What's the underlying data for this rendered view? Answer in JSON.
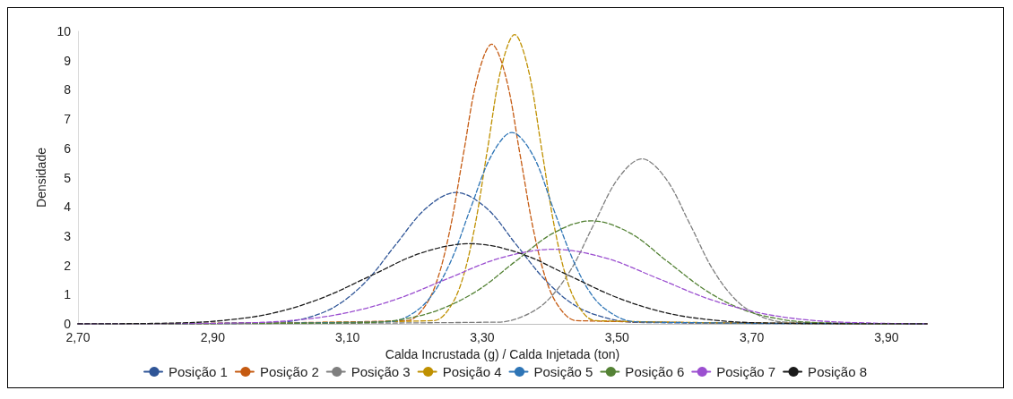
{
  "chart_data": {
    "type": "line",
    "xlabel": "Calda Incrustada (g) / Calda Injetada (ton)",
    "ylabel": "Densidade",
    "xlim": [
      2.7,
      3.96
    ],
    "xticks": [
      {
        "value": 2.7,
        "label": "2,70"
      },
      {
        "value": 2.9,
        "label": "2,90"
      },
      {
        "value": 3.1,
        "label": "3,10"
      },
      {
        "value": 3.3,
        "label": "3,30"
      },
      {
        "value": 3.5,
        "label": "3,50"
      },
      {
        "value": 3.7,
        "label": "3,70"
      },
      {
        "value": 3.9,
        "label": "3,90"
      }
    ],
    "ylim": [
      0,
      10
    ],
    "yticks": [
      0,
      1,
      2,
      3,
      4,
      5,
      6,
      7,
      8,
      9,
      10
    ],
    "grid": false,
    "legend": "bottom",
    "marker": "none",
    "line_style": "dashed",
    "series": [
      {
        "name": "Posição 1",
        "color": "#2f5597",
        "x": [
          2.7,
          2.994,
          3.039,
          3.083,
          3.128,
          3.172,
          3.217,
          3.261,
          3.306,
          3.35,
          3.395,
          3.439,
          3.484,
          3.528,
          3.96
        ],
        "values": [
          0,
          0.05,
          0.2,
          0.61,
          1.46,
          2.72,
          3.96,
          4.49,
          3.96,
          2.72,
          1.46,
          0.61,
          0.2,
          0.05,
          0
        ]
      },
      {
        "name": "Posição 2",
        "color": "#c55a11",
        "x": [
          2.7,
          3.188,
          3.209,
          3.23,
          3.251,
          3.272,
          3.293,
          3.314,
          3.335,
          3.356,
          3.377,
          3.398,
          3.419,
          3.44,
          3.96
        ],
        "values": [
          0,
          0.11,
          0.42,
          1.29,
          3.1,
          5.8,
          8.44,
          9.56,
          8.44,
          5.8,
          3.1,
          1.29,
          0.42,
          0.11,
          0
        ]
      },
      {
        "name": "Posição 3",
        "color": "#7f7f7f",
        "x": [
          2.7,
          3.324,
          3.36,
          3.395,
          3.431,
          3.466,
          3.502,
          3.537,
          3.572,
          3.608,
          3.643,
          3.679,
          3.714,
          3.75,
          3.96
        ],
        "values": [
          0,
          0.06,
          0.25,
          0.76,
          1.83,
          3.42,
          4.98,
          5.64,
          4.98,
          3.42,
          1.83,
          0.76,
          0.25,
          0.06,
          0
        ]
      },
      {
        "name": "Posição 4",
        "color": "#bf9000",
        "x": [
          2.7,
          3.228,
          3.248,
          3.268,
          3.288,
          3.308,
          3.328,
          3.348,
          3.368,
          3.388,
          3.408,
          3.428,
          3.448,
          3.468,
          3.96
        ],
        "values": [
          0,
          0.11,
          0.43,
          1.34,
          3.21,
          6.0,
          8.73,
          9.89,
          8.73,
          6.0,
          3.21,
          1.34,
          0.43,
          0.11,
          0
        ]
      },
      {
        "name": "Posição 5",
        "color": "#2e75b6",
        "x": [
          2.7,
          3.161,
          3.192,
          3.222,
          3.253,
          3.283,
          3.314,
          3.344,
          3.375,
          3.405,
          3.436,
          3.466,
          3.497,
          3.527,
          3.96
        ],
        "values": [
          0,
          0.07,
          0.29,
          0.88,
          2.12,
          3.97,
          5.77,
          6.54,
          5.77,
          3.97,
          2.12,
          0.88,
          0.29,
          0.07,
          0
        ]
      },
      {
        "name": "Posição 6",
        "color": "#548235",
        "x": [
          2.7,
          3.123,
          3.18,
          3.236,
          3.293,
          3.349,
          3.406,
          3.462,
          3.519,
          3.575,
          3.632,
          3.688,
          3.745,
          3.801,
          3.96
        ],
        "values": [
          0,
          0.04,
          0.15,
          0.48,
          1.14,
          2.13,
          3.11,
          3.52,
          3.11,
          2.13,
          1.14,
          0.48,
          0.15,
          0.04,
          0
        ]
      },
      {
        "name": "Posição 7",
        "color": "#9b4fd0",
        "x": [
          2.7,
          2.937,
          3.015,
          3.093,
          3.171,
          3.249,
          3.327,
          3.405,
          3.483,
          3.561,
          3.639,
          3.717,
          3.795,
          3.873,
          3.96
        ],
        "values": [
          0,
          0.03,
          0.11,
          0.35,
          0.83,
          1.55,
          2.25,
          2.55,
          2.25,
          1.55,
          0.83,
          0.35,
          0.11,
          0.03,
          0
        ]
      },
      {
        "name": "Posição 8",
        "color": "#1a1a1a",
        "x": [
          2.7,
          2.844,
          2.917,
          2.99,
          3.063,
          3.136,
          3.209,
          3.282,
          3.355,
          3.428,
          3.501,
          3.574,
          3.647,
          3.72,
          3.96
        ],
        "values": [
          0,
          0.03,
          0.12,
          0.37,
          0.89,
          1.66,
          2.42,
          2.74,
          2.42,
          1.66,
          0.89,
          0.37,
          0.12,
          0.03,
          0
        ]
      }
    ]
  }
}
